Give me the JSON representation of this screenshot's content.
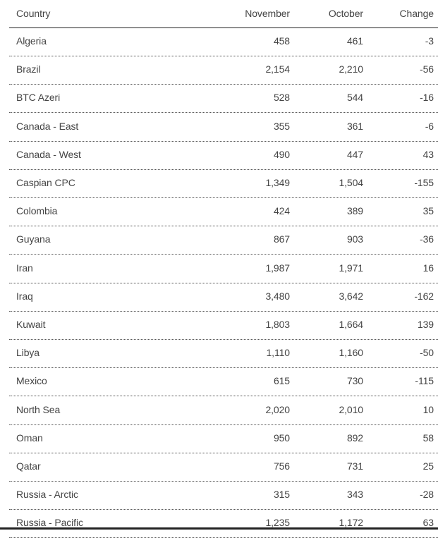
{
  "table": {
    "headers": [
      "Country",
      "November",
      "October",
      "Change"
    ],
    "rows": [
      [
        "Algeria",
        "458",
        "461",
        "-3"
      ],
      [
        "Brazil",
        "2,154",
        "2,210",
        "-56"
      ],
      [
        "BTC Azeri",
        "528",
        "544",
        "-16"
      ],
      [
        "Canada - East",
        "355",
        "361",
        "-6"
      ],
      [
        "Canada - West",
        "490",
        "447",
        "43"
      ],
      [
        "Caspian CPC",
        "1,349",
        "1,504",
        "-155"
      ],
      [
        "Colombia",
        "424",
        "389",
        "35"
      ],
      [
        "Guyana",
        "867",
        "903",
        "-36"
      ],
      [
        "Iran",
        "1,987",
        "1,971",
        "16"
      ],
      [
        "Iraq",
        "3,480",
        "3,642",
        "-162"
      ],
      [
        "Kuwait",
        "1,803",
        "1,664",
        "139"
      ],
      [
        "Libya",
        "1,110",
        "1,160",
        "-50"
      ],
      [
        "Mexico",
        "615",
        "730",
        "-115"
      ],
      [
        "North Sea",
        "2,020",
        "2,010",
        "10"
      ],
      [
        "Oman",
        "950",
        "892",
        "58"
      ],
      [
        "Qatar",
        "756",
        "731",
        "25"
      ],
      [
        "Russia - Arctic",
        "315",
        "343",
        "-28"
      ],
      [
        "Russia - Pacific",
        "1,235",
        "1,172",
        "63"
      ]
    ]
  }
}
